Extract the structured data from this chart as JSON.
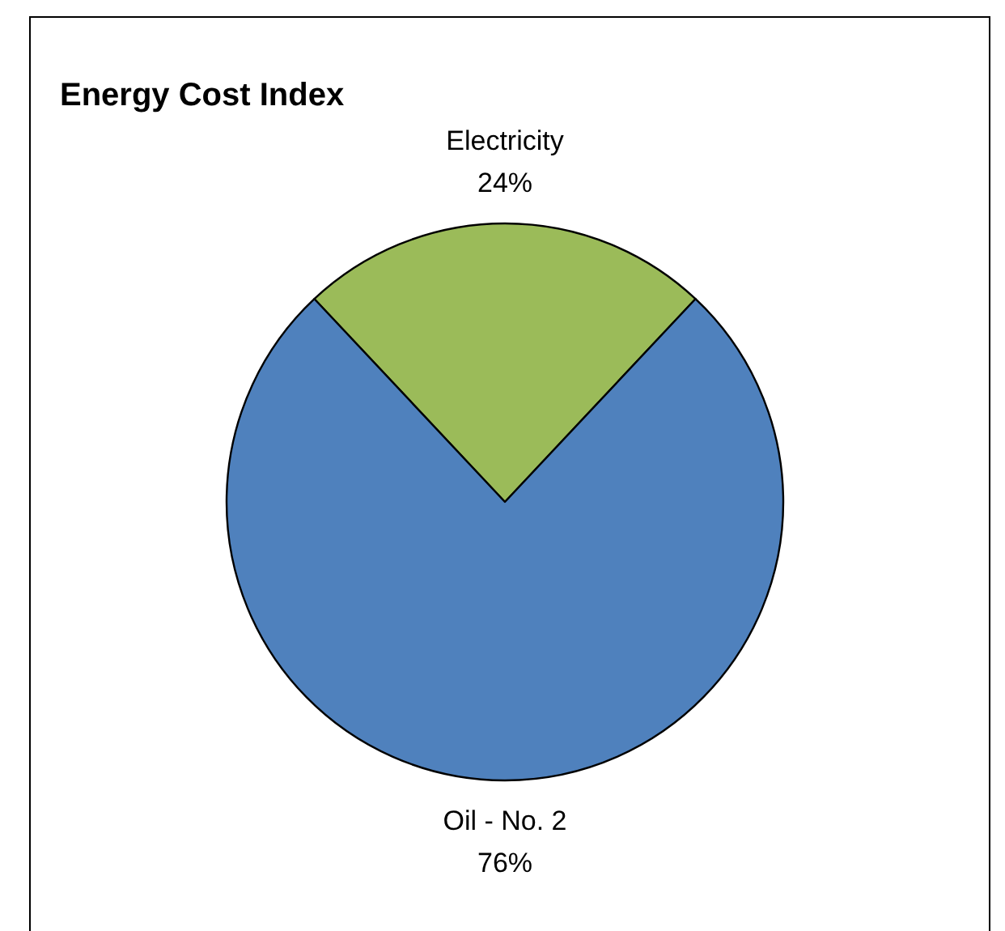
{
  "chart_data": {
    "type": "pie",
    "title": "Energy Cost Index",
    "categories": [
      "Electricity",
      "Oil - No. 2"
    ],
    "values": [
      24,
      76
    ],
    "colors": [
      "#9bbb59",
      "#4f81bd"
    ],
    "value_labels": [
      "24%",
      "76%"
    ]
  }
}
